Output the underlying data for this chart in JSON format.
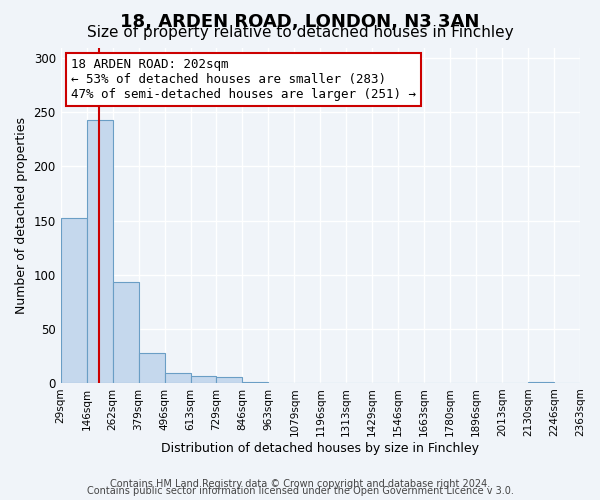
{
  "title1": "18, ARDEN ROAD, LONDON, N3 3AN",
  "title2": "Size of property relative to detached houses in Finchley",
  "xlabel": "Distribution of detached houses by size in Finchley",
  "ylabel": "Number of detached properties",
  "bin_labels": [
    "29sqm",
    "146sqm",
    "262sqm",
    "379sqm",
    "496sqm",
    "613sqm",
    "729sqm",
    "846sqm",
    "963sqm",
    "1079sqm",
    "1196sqm",
    "1313sqm",
    "1429sqm",
    "1546sqm",
    "1663sqm",
    "1780sqm",
    "1896sqm",
    "2013sqm",
    "2130sqm",
    "2246sqm",
    "2363sqm"
  ],
  "bar_heights": [
    152,
    243,
    93,
    28,
    9,
    6,
    5,
    1,
    0,
    0,
    0,
    0,
    0,
    0,
    0,
    0,
    0,
    0,
    1,
    0
  ],
  "bar_color": "#c5d8ed",
  "bar_edge_color": "#6a9ec5",
  "bar_edge_width": 0.8,
  "property_value": 202,
  "red_line_color": "#cc0000",
  "annotation_text": "18 ARDEN ROAD: 202sqm\n← 53% of detached houses are smaller (283)\n47% of semi-detached houses are larger (251) →",
  "annotation_box_color": "#ffffff",
  "annotation_box_edge": "#cc0000",
  "ylim": [
    0,
    310
  ],
  "yticks": [
    0,
    50,
    100,
    150,
    200,
    250,
    300
  ],
  "footer1": "Contains HM Land Registry data © Crown copyright and database right 2024.",
  "footer2": "Contains public sector information licensed under the Open Government Licence v 3.0.",
  "bg_color": "#f0f4f9",
  "grid_color": "#ffffff",
  "title_fontsize": 13,
  "subtitle_fontsize": 11,
  "tick_label_fontsize": 7.5,
  "axis_label_fontsize": 9,
  "annotation_fontsize": 9,
  "footer_fontsize": 7
}
